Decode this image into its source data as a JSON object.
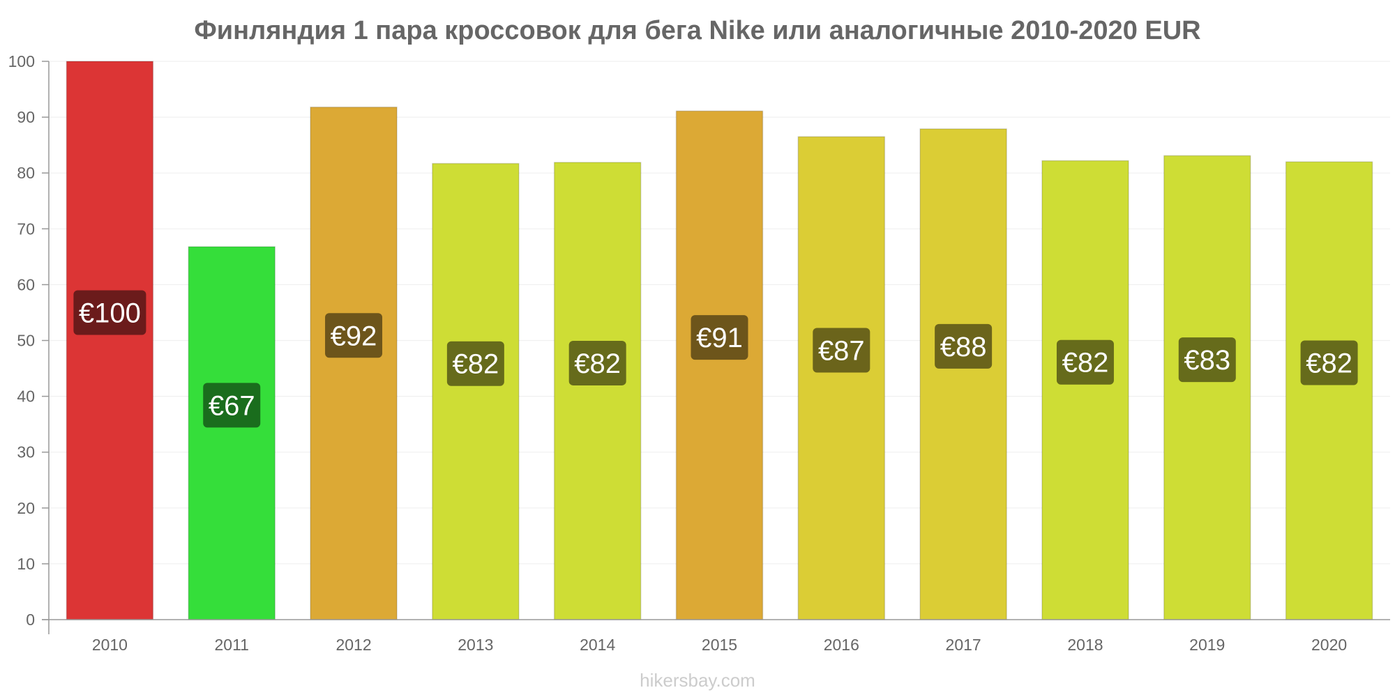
{
  "chart_data": {
    "type": "bar",
    "title": "Финляндия 1 пара кроссовок для бега Nike или аналогичные 2010-2020 EUR",
    "xlabel": "",
    "ylabel": "",
    "ylim": [
      0,
      100
    ],
    "yticks": [
      0,
      10,
      20,
      30,
      40,
      50,
      60,
      70,
      80,
      90,
      100
    ],
    "grid": true,
    "legend": "none",
    "categories": [
      "2010",
      "2011",
      "2012",
      "2013",
      "2014",
      "2015",
      "2016",
      "2017",
      "2018",
      "2019",
      "2020"
    ],
    "values": [
      100,
      66.8,
      91.8,
      81.7,
      81.9,
      91.1,
      86.5,
      87.9,
      82.2,
      83.1,
      82.0
    ],
    "value_labels": [
      "€100",
      "€67",
      "€92",
      "€82",
      "€82",
      "€91",
      "€87",
      "€88",
      "€82",
      "€83",
      "€82"
    ],
    "bar_colors": [
      "#dc3535",
      "#35de3a",
      "#dca935",
      "#cedd35",
      "#cedd35",
      "#dca935",
      "#dbcd35",
      "#dbcd35",
      "#cedd35",
      "#cedd35",
      "#cedd35"
    ],
    "label_box_colors": [
      "#6b1b1b",
      "#1a6d1d",
      "#6d551b",
      "#666b1b",
      "#666b1b",
      "#6d551b",
      "#6b641b",
      "#6b641b",
      "#666b1b",
      "#666b1b",
      "#666b1b"
    ]
  },
  "watermark": "hikersbay.com"
}
